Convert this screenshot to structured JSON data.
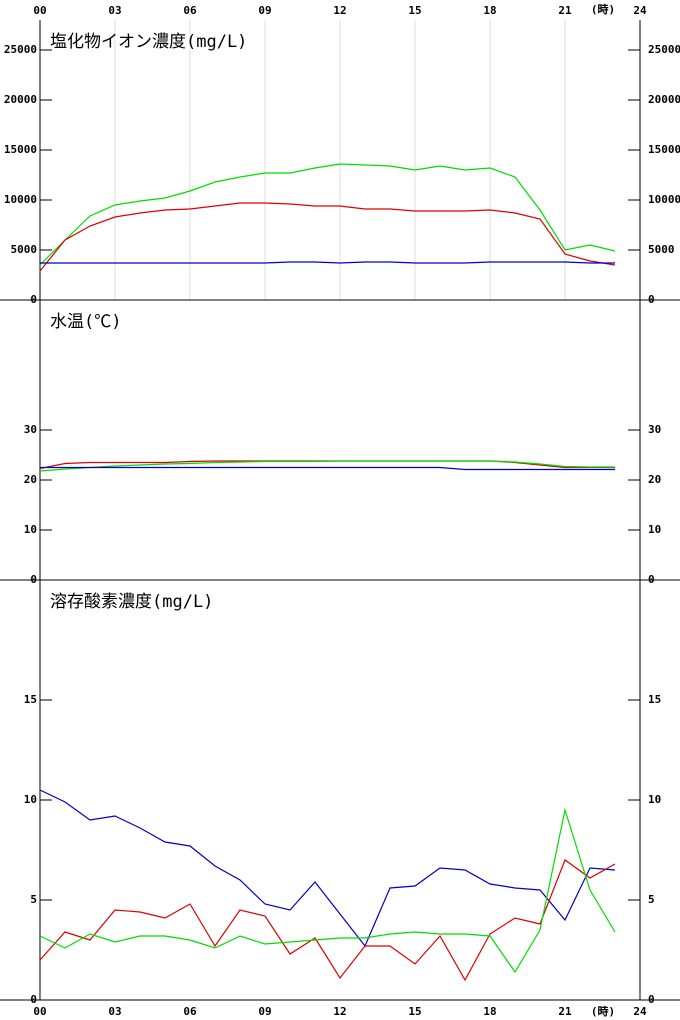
{
  "chart_data": [
    {
      "type": "line",
      "title": "塩化物イオン濃度(mg/L)",
      "xlabel": "(時)",
      "x": [
        0,
        1,
        2,
        3,
        4,
        5,
        6,
        7,
        8,
        9,
        10,
        11,
        12,
        13,
        14,
        15,
        16,
        17,
        18,
        19,
        20,
        21,
        22,
        23
      ],
      "xlim": [
        0,
        24
      ],
      "xticks": [
        {
          "value": 0,
          "label": "00"
        },
        {
          "value": 3,
          "label": "03"
        },
        {
          "value": 6,
          "label": "06"
        },
        {
          "value": 9,
          "label": "09"
        },
        12,
        15,
        18,
        21,
        24
      ],
      "ylim": [
        0,
        28000
      ],
      "yticks": [
        0,
        5000,
        10000,
        15000,
        20000,
        25000
      ],
      "grid": true,
      "xaxis_side": "top",
      "series": [
        {
          "color": "#00dd00",
          "values": [
            3500,
            6000,
            8400,
            9500,
            9900,
            10200,
            10900,
            11800,
            12300,
            12700,
            12700,
            13200,
            13600,
            13500,
            13400,
            13000,
            13400,
            13000,
            13200,
            12300,
            9000,
            5000,
            5500,
            4900
          ]
        },
        {
          "color": "#dd0000",
          "values": [
            2900,
            6000,
            7400,
            8300,
            8700,
            9000,
            9100,
            9400,
            9700,
            9700,
            9600,
            9400,
            9400,
            9100,
            9100,
            8900,
            8900,
            8900,
            9000,
            8700,
            8100,
            4600,
            3900,
            3500
          ]
        },
        {
          "color": "#0000cc",
          "values": [
            3700,
            3700,
            3700,
            3700,
            3700,
            3700,
            3700,
            3700,
            3700,
            3700,
            3800,
            3800,
            3700,
            3800,
            3800,
            3700,
            3700,
            3700,
            3800,
            3800,
            3800,
            3800,
            3700,
            3700
          ]
        }
      ]
    },
    {
      "type": "line",
      "title": "水温(℃)",
      "x": [
        0,
        1,
        2,
        3,
        4,
        5,
        6,
        7,
        8,
        9,
        10,
        11,
        12,
        13,
        14,
        15,
        16,
        17,
        18,
        19,
        20,
        21,
        22,
        23
      ],
      "xlim": [
        0,
        24
      ],
      "ylim": [
        0,
        56
      ],
      "yticks": [
        0,
        10,
        20,
        30
      ],
      "grid": false,
      "series": [
        {
          "color": "#dd0000",
          "values": [
            22.3,
            23.3,
            23.5,
            23.5,
            23.5,
            23.5,
            23.7,
            23.8,
            23.8,
            23.8,
            23.8,
            23.8,
            23.8,
            23.8,
            23.8,
            23.8,
            23.8,
            23.8,
            23.8,
            23.5,
            23,
            22.5,
            22.5,
            22.5
          ]
        },
        {
          "color": "#00dd00",
          "values": [
            21.8,
            22.2,
            22.5,
            22.8,
            23,
            23.2,
            23.3,
            23.5,
            23.6,
            23.7,
            23.7,
            23.7,
            23.8,
            23.8,
            23.8,
            23.8,
            23.8,
            23.8,
            23.8,
            23.6,
            23.2,
            22.7,
            22.6,
            22.6
          ]
        },
        {
          "color": "#0000cc",
          "values": [
            22.5,
            22.5,
            22.5,
            22.5,
            22.5,
            22.5,
            22.5,
            22.5,
            22.5,
            22.5,
            22.5,
            22.5,
            22.5,
            22.5,
            22.5,
            22.5,
            22.5,
            22.1,
            22.1,
            22.1,
            22.1,
            22.1,
            22.1,
            22.1
          ]
        }
      ]
    },
    {
      "type": "line",
      "title": "溶存酸素濃度(mg/L)",
      "xlabel": "(時)",
      "x": [
        0,
        1,
        2,
        3,
        4,
        5,
        6,
        7,
        8,
        9,
        10,
        11,
        12,
        13,
        14,
        15,
        16,
        17,
        18,
        19,
        20,
        21,
        22,
        23
      ],
      "xlim": [
        0,
        24
      ],
      "xticks": [
        {
          "value": 0,
          "label": "00"
        },
        {
          "value": 3,
          "label": "03"
        },
        {
          "value": 6,
          "label": "06"
        },
        {
          "value": 9,
          "label": "09"
        },
        12,
        15,
        18,
        21,
        24
      ],
      "ylim": [
        0,
        21
      ],
      "yticks": [
        0,
        5,
        10,
        15
      ],
      "grid": false,
      "xaxis_side": "bottom",
      "series": [
        {
          "color": "#0000cc",
          "values": [
            10.5,
            9.9,
            9.0,
            9.2,
            8.6,
            7.9,
            7.7,
            6.7,
            6.0,
            4.8,
            4.5,
            5.9,
            4.3,
            2.7,
            5.6,
            5.7,
            6.6,
            6.5,
            5.8,
            5.6,
            5.5,
            4.0,
            6.6,
            6.5
          ]
        },
        {
          "color": "#dd0000",
          "values": [
            2.0,
            3.4,
            3.0,
            4.5,
            4.4,
            4.1,
            4.8,
            2.7,
            4.5,
            4.2,
            2.3,
            3.1,
            1.1,
            2.7,
            2.7,
            1.8,
            3.2,
            1.0,
            3.3,
            4.1,
            3.8,
            7.0,
            6.1,
            6.8
          ]
        },
        {
          "color": "#00dd00",
          "values": [
            3.2,
            2.6,
            3.3,
            2.9,
            3.2,
            3.2,
            3.0,
            2.6,
            3.2,
            2.8,
            2.9,
            3.0,
            3.1,
            3.1,
            3.3,
            3.4,
            3.3,
            3.3,
            3.2,
            1.4,
            3.5,
            9.5,
            5.5,
            3.4
          ]
        }
      ]
    }
  ]
}
